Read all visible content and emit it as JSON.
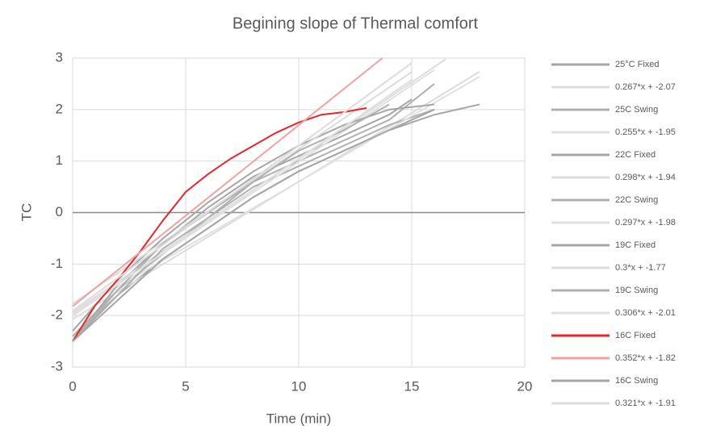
{
  "chart_data": {
    "type": "line",
    "title": "Begining slope of Thermal comfort",
    "x_label": "Time (min)",
    "y_label": "TC",
    "xlim": [
      0,
      20
    ],
    "xticks": [
      0,
      5,
      10,
      15,
      20
    ],
    "ylim": [
      -3,
      3
    ],
    "yticks": [
      -3,
      -2,
      -1,
      0,
      1,
      2,
      3
    ],
    "grid": true,
    "legend": "right",
    "series": [
      {
        "name": "25°C Fixed",
        "color": "#a6a6a6",
        "x": [
          0,
          2,
          4,
          6,
          8,
          10,
          12,
          14,
          16,
          18
        ],
        "values": [
          -2.5,
          -1.6,
          -0.9,
          -0.3,
          0.3,
          0.8,
          1.2,
          1.6,
          1.9,
          2.1
        ]
      },
      {
        "name": "0.267*x + -2.07",
        "color": "#dcdcdc",
        "x": [
          0,
          18
        ],
        "values": [
          -2.07,
          2.736
        ]
      },
      {
        "name": "25C Swing",
        "color": "#b0b0b0",
        "x": [
          0,
          2,
          4,
          6,
          8,
          10,
          12,
          14,
          16
        ],
        "values": [
          -2.4,
          -1.5,
          -0.8,
          -0.1,
          0.5,
          0.9,
          1.3,
          1.7,
          2.0
        ]
      },
      {
        "name": "0.255*x + -1.95",
        "color": "#e0e0e0",
        "x": [
          0,
          18
        ],
        "values": [
          -1.95,
          2.64
        ]
      },
      {
        "name": "22C Fixed",
        "color": "#a6a6a6",
        "x": [
          0,
          2,
          4,
          6,
          8,
          10,
          12,
          14,
          15
        ],
        "values": [
          -2.5,
          -1.4,
          -0.6,
          0.1,
          0.7,
          1.1,
          1.5,
          1.9,
          2.2
        ]
      },
      {
        "name": "0.298*x + -1.94",
        "color": "#dcdcdc",
        "x": [
          0,
          16.5
        ],
        "values": [
          -1.94,
          2.977
        ]
      },
      {
        "name": "22C Swing",
        "color": "#b0b0b0",
        "x": [
          0,
          2,
          4,
          6,
          8,
          10,
          12,
          14,
          16
        ],
        "values": [
          -2.4,
          -1.6,
          -0.7,
          -0.1,
          0.6,
          1.0,
          1.4,
          1.8,
          2.5
        ]
      },
      {
        "name": "0.297*x + -1.98",
        "color": "#e0e0e0",
        "x": [
          0,
          16
        ],
        "values": [
          -1.98,
          2.772
        ]
      },
      {
        "name": "19C Fixed",
        "color": "#a6a6a6",
        "x": [
          0,
          2,
          4,
          6,
          8,
          10,
          12,
          14,
          16
        ],
        "values": [
          -2.3,
          -1.3,
          -0.5,
          0.2,
          0.8,
          1.3,
          1.7,
          2.0,
          2.1
        ]
      },
      {
        "name": "0.3*x + -1.77",
        "color": "#dcdcdc",
        "x": [
          0,
          15
        ],
        "values": [
          -1.77,
          2.73
        ]
      },
      {
        "name": "19C Swing",
        "color": "#b0b0b0",
        "x": [
          0,
          2,
          4,
          6,
          8,
          10,
          12,
          14
        ],
        "values": [
          -2.5,
          -1.5,
          -0.6,
          0.0,
          0.6,
          1.2,
          1.6,
          2.1
        ]
      },
      {
        "name": "0.306*x + -2.01",
        "color": "#e0e0e0",
        "x": [
          0,
          15
        ],
        "values": [
          -2.01,
          2.58
        ]
      },
      {
        "name": "16C Fixed",
        "color": "#e8262a",
        "x": [
          0,
          1,
          2,
          3,
          4,
          5,
          6,
          7,
          8,
          9,
          10,
          11,
          12,
          13
        ],
        "values": [
          -2.5,
          -1.8,
          -1.3,
          -0.75,
          -0.15,
          0.4,
          0.75,
          1.05,
          1.3,
          1.55,
          1.75,
          1.9,
          1.95,
          2.03
        ]
      },
      {
        "name": "0.352*x + -1.82",
        "color": "#f4a0a0",
        "x": [
          0,
          13.7
        ],
        "values": [
          -1.82,
          3.0
        ]
      },
      {
        "name": "16C Swing",
        "color": "#a6a6a6",
        "x": [
          0,
          2,
          4,
          6,
          8,
          10,
          12,
          14,
          16
        ],
        "values": [
          -2.5,
          -1.7,
          -0.9,
          -0.3,
          0.3,
          0.8,
          1.2,
          1.6,
          2.0
        ]
      },
      {
        "name": "0.321*x + -1.91",
        "color": "#dcdcdc",
        "x": [
          0,
          15
        ],
        "values": [
          -1.91,
          2.905
        ]
      }
    ]
  }
}
